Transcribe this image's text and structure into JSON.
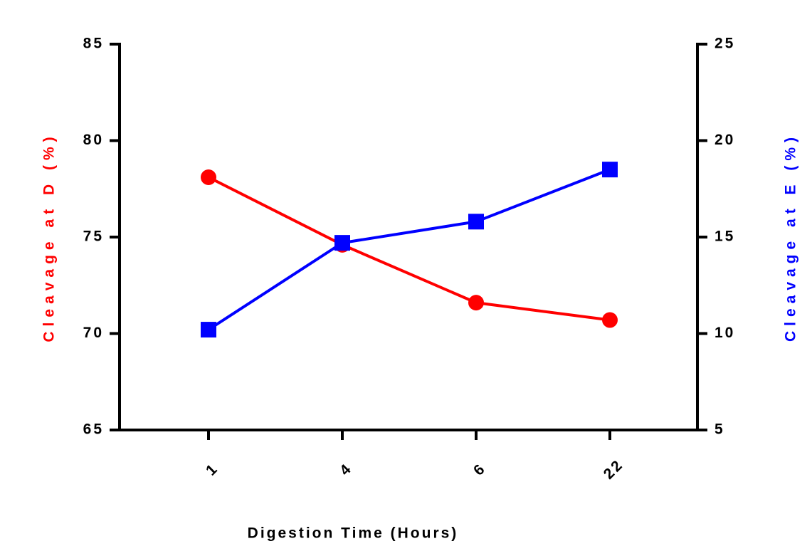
{
  "chart_data": {
    "type": "line",
    "x_label": "Digestion Time (Hours)",
    "y_label": "Cleavage at D (%)",
    "y2_label": "Cleavage at E (%)",
    "categories": [
      "1",
      "4",
      "6",
      "22"
    ],
    "series": [
      {
        "name": "Cleavage at D (%)",
        "color": "#ff0000",
        "marker": "circle",
        "axis": "y",
        "values": [
          78.1,
          74.6,
          71.6,
          70.7
        ]
      },
      {
        "name": "Cleavage at E (%)",
        "color": "#0000ff",
        "marker": "square",
        "axis": "y2",
        "values": [
          10.2,
          14.7,
          15.8,
          18.5
        ]
      }
    ],
    "ylim": [
      65,
      85
    ],
    "yticks": [
      65,
      70,
      75,
      80,
      85
    ],
    "y2lim": [
      5,
      25
    ],
    "y2ticks": [
      5,
      10,
      15,
      20,
      25
    ],
    "grid": false
  }
}
